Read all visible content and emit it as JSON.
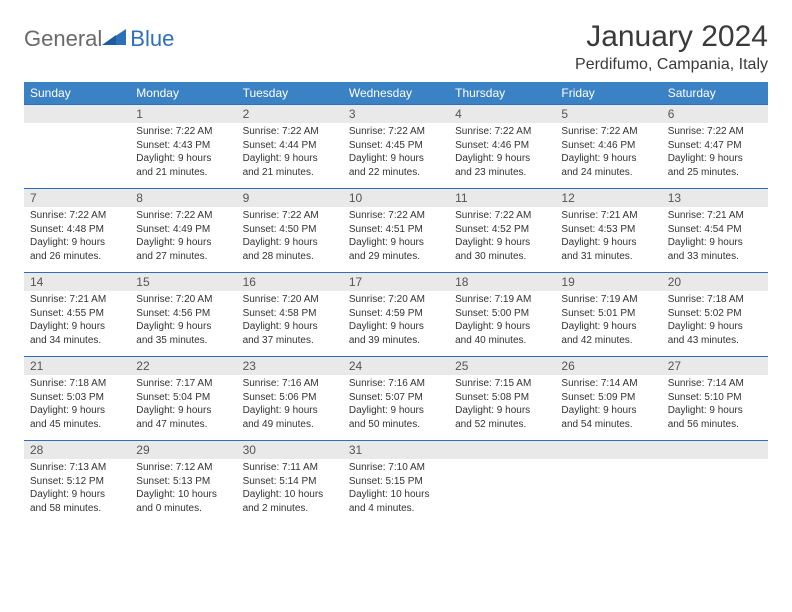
{
  "logo": {
    "part1": "General",
    "part2": "Blue"
  },
  "title": "January 2024",
  "location": "Perdifumo, Campania, Italy",
  "colors": {
    "header_bg": "#3b82c4",
    "header_text": "#ffffff",
    "daynum_bg": "#e9e9e9",
    "border_top": "#2d6fb8",
    "logo_gray": "#6a6a6a",
    "logo_blue": "#2d6fb8"
  },
  "day_headers": [
    "Sunday",
    "Monday",
    "Tuesday",
    "Wednesday",
    "Thursday",
    "Friday",
    "Saturday"
  ],
  "weeks": [
    [
      null,
      {
        "n": "1",
        "sr": "Sunrise: 7:22 AM",
        "ss": "Sunset: 4:43 PM",
        "d1": "Daylight: 9 hours",
        "d2": "and 21 minutes."
      },
      {
        "n": "2",
        "sr": "Sunrise: 7:22 AM",
        "ss": "Sunset: 4:44 PM",
        "d1": "Daylight: 9 hours",
        "d2": "and 21 minutes."
      },
      {
        "n": "3",
        "sr": "Sunrise: 7:22 AM",
        "ss": "Sunset: 4:45 PM",
        "d1": "Daylight: 9 hours",
        "d2": "and 22 minutes."
      },
      {
        "n": "4",
        "sr": "Sunrise: 7:22 AM",
        "ss": "Sunset: 4:46 PM",
        "d1": "Daylight: 9 hours",
        "d2": "and 23 minutes."
      },
      {
        "n": "5",
        "sr": "Sunrise: 7:22 AM",
        "ss": "Sunset: 4:46 PM",
        "d1": "Daylight: 9 hours",
        "d2": "and 24 minutes."
      },
      {
        "n": "6",
        "sr": "Sunrise: 7:22 AM",
        "ss": "Sunset: 4:47 PM",
        "d1": "Daylight: 9 hours",
        "d2": "and 25 minutes."
      }
    ],
    [
      {
        "n": "7",
        "sr": "Sunrise: 7:22 AM",
        "ss": "Sunset: 4:48 PM",
        "d1": "Daylight: 9 hours",
        "d2": "and 26 minutes."
      },
      {
        "n": "8",
        "sr": "Sunrise: 7:22 AM",
        "ss": "Sunset: 4:49 PM",
        "d1": "Daylight: 9 hours",
        "d2": "and 27 minutes."
      },
      {
        "n": "9",
        "sr": "Sunrise: 7:22 AM",
        "ss": "Sunset: 4:50 PM",
        "d1": "Daylight: 9 hours",
        "d2": "and 28 minutes."
      },
      {
        "n": "10",
        "sr": "Sunrise: 7:22 AM",
        "ss": "Sunset: 4:51 PM",
        "d1": "Daylight: 9 hours",
        "d2": "and 29 minutes."
      },
      {
        "n": "11",
        "sr": "Sunrise: 7:22 AM",
        "ss": "Sunset: 4:52 PM",
        "d1": "Daylight: 9 hours",
        "d2": "and 30 minutes."
      },
      {
        "n": "12",
        "sr": "Sunrise: 7:21 AM",
        "ss": "Sunset: 4:53 PM",
        "d1": "Daylight: 9 hours",
        "d2": "and 31 minutes."
      },
      {
        "n": "13",
        "sr": "Sunrise: 7:21 AM",
        "ss": "Sunset: 4:54 PM",
        "d1": "Daylight: 9 hours",
        "d2": "and 33 minutes."
      }
    ],
    [
      {
        "n": "14",
        "sr": "Sunrise: 7:21 AM",
        "ss": "Sunset: 4:55 PM",
        "d1": "Daylight: 9 hours",
        "d2": "and 34 minutes."
      },
      {
        "n": "15",
        "sr": "Sunrise: 7:20 AM",
        "ss": "Sunset: 4:56 PM",
        "d1": "Daylight: 9 hours",
        "d2": "and 35 minutes."
      },
      {
        "n": "16",
        "sr": "Sunrise: 7:20 AM",
        "ss": "Sunset: 4:58 PM",
        "d1": "Daylight: 9 hours",
        "d2": "and 37 minutes."
      },
      {
        "n": "17",
        "sr": "Sunrise: 7:20 AM",
        "ss": "Sunset: 4:59 PM",
        "d1": "Daylight: 9 hours",
        "d2": "and 39 minutes."
      },
      {
        "n": "18",
        "sr": "Sunrise: 7:19 AM",
        "ss": "Sunset: 5:00 PM",
        "d1": "Daylight: 9 hours",
        "d2": "and 40 minutes."
      },
      {
        "n": "19",
        "sr": "Sunrise: 7:19 AM",
        "ss": "Sunset: 5:01 PM",
        "d1": "Daylight: 9 hours",
        "d2": "and 42 minutes."
      },
      {
        "n": "20",
        "sr": "Sunrise: 7:18 AM",
        "ss": "Sunset: 5:02 PM",
        "d1": "Daylight: 9 hours",
        "d2": "and 43 minutes."
      }
    ],
    [
      {
        "n": "21",
        "sr": "Sunrise: 7:18 AM",
        "ss": "Sunset: 5:03 PM",
        "d1": "Daylight: 9 hours",
        "d2": "and 45 minutes."
      },
      {
        "n": "22",
        "sr": "Sunrise: 7:17 AM",
        "ss": "Sunset: 5:04 PM",
        "d1": "Daylight: 9 hours",
        "d2": "and 47 minutes."
      },
      {
        "n": "23",
        "sr": "Sunrise: 7:16 AM",
        "ss": "Sunset: 5:06 PM",
        "d1": "Daylight: 9 hours",
        "d2": "and 49 minutes."
      },
      {
        "n": "24",
        "sr": "Sunrise: 7:16 AM",
        "ss": "Sunset: 5:07 PM",
        "d1": "Daylight: 9 hours",
        "d2": "and 50 minutes."
      },
      {
        "n": "25",
        "sr": "Sunrise: 7:15 AM",
        "ss": "Sunset: 5:08 PM",
        "d1": "Daylight: 9 hours",
        "d2": "and 52 minutes."
      },
      {
        "n": "26",
        "sr": "Sunrise: 7:14 AM",
        "ss": "Sunset: 5:09 PM",
        "d1": "Daylight: 9 hours",
        "d2": "and 54 minutes."
      },
      {
        "n": "27",
        "sr": "Sunrise: 7:14 AM",
        "ss": "Sunset: 5:10 PM",
        "d1": "Daylight: 9 hours",
        "d2": "and 56 minutes."
      }
    ],
    [
      {
        "n": "28",
        "sr": "Sunrise: 7:13 AM",
        "ss": "Sunset: 5:12 PM",
        "d1": "Daylight: 9 hours",
        "d2": "and 58 minutes."
      },
      {
        "n": "29",
        "sr": "Sunrise: 7:12 AM",
        "ss": "Sunset: 5:13 PM",
        "d1": "Daylight: 10 hours",
        "d2": "and 0 minutes."
      },
      {
        "n": "30",
        "sr": "Sunrise: 7:11 AM",
        "ss": "Sunset: 5:14 PM",
        "d1": "Daylight: 10 hours",
        "d2": "and 2 minutes."
      },
      {
        "n": "31",
        "sr": "Sunrise: 7:10 AM",
        "ss": "Sunset: 5:15 PM",
        "d1": "Daylight: 10 hours",
        "d2": "and 4 minutes."
      },
      null,
      null,
      null
    ]
  ]
}
